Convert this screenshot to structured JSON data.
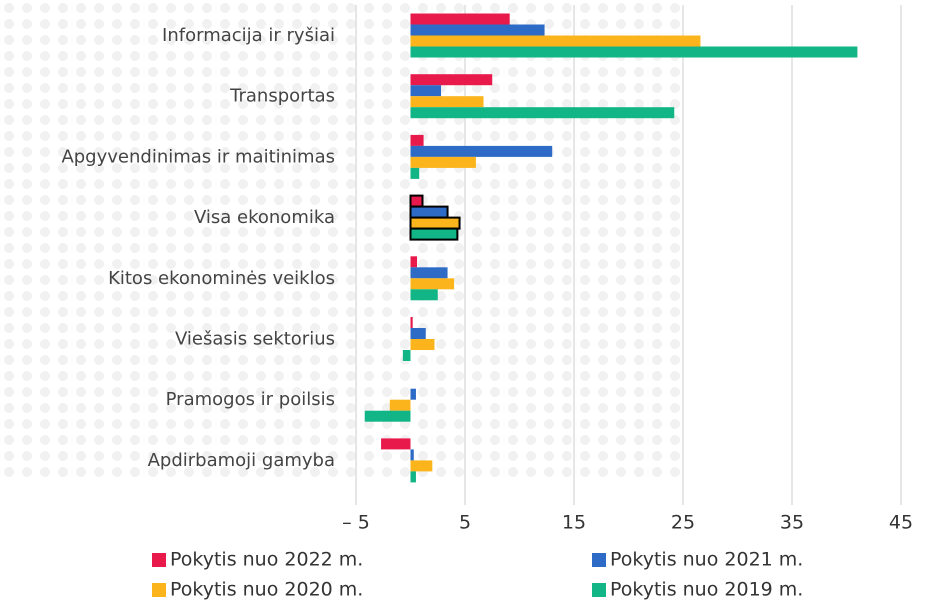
{
  "chart_data": {
    "type": "barh",
    "categories": [
      "Informacija ir ryšiai",
      "Transportas",
      "Apgyvendinimas ir maitinimas",
      "Visa ekonomika",
      "Kitos ekonominės veiklos",
      "Viešasis sektorius",
      "Pramogos ir poilsis",
      "Apdirbamoji gamyba"
    ],
    "series": [
      {
        "name": "Pokytis nuo 2022 m.",
        "color": "#e8194b",
        "values": [
          9.1,
          7.5,
          1.2,
          1.1,
          0.6,
          0.2,
          0.0,
          -2.7
        ]
      },
      {
        "name": "Pokytis nuo 2021 m.",
        "color": "#2e6bc6",
        "values": [
          12.3,
          2.8,
          13.0,
          3.4,
          3.4,
          1.4,
          0.5,
          0.3
        ]
      },
      {
        "name": "Pokytis nuo 2020 m.",
        "color": "#fbb41b",
        "values": [
          26.6,
          6.7,
          6.0,
          4.5,
          4.0,
          2.2,
          -1.9,
          2.0
        ]
      },
      {
        "name": "Pokytis nuo 2019 m.",
        "color": "#12b585",
        "values": [
          41.0,
          24.2,
          0.8,
          4.3,
          2.5,
          -0.7,
          -4.2,
          0.5
        ]
      }
    ],
    "xlim": [
      -5,
      45
    ],
    "xticks": [
      {
        "value": -5,
        "label": "– 5"
      },
      5,
      15,
      25,
      35,
      45
    ],
    "grid": true,
    "highlight_index": 3,
    "legend": "bottom"
  }
}
